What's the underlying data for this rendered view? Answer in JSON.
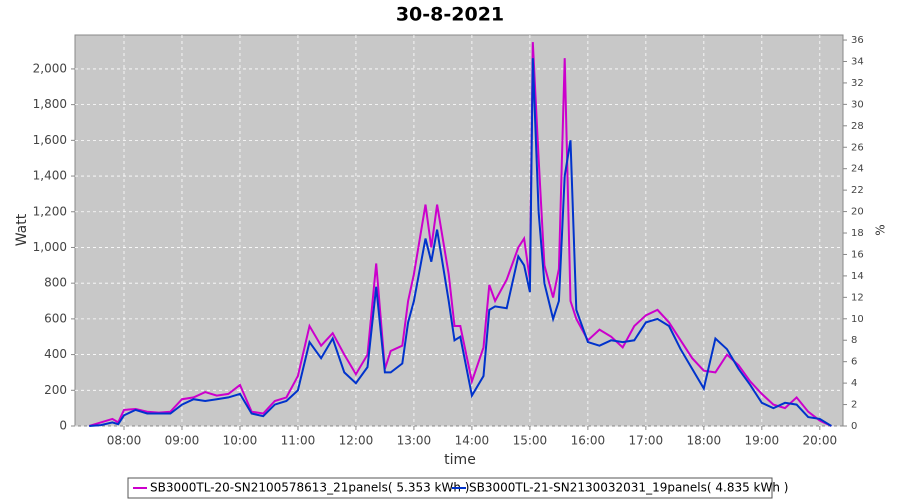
{
  "chart_data": {
    "type": "line",
    "title": "30-8-2021",
    "xlabel": "time",
    "ylabel": "Watt",
    "y2label": "%",
    "x": [
      7.4,
      7.6,
      7.8,
      7.9,
      8.0,
      8.2,
      8.4,
      8.6,
      8.8,
      9.0,
      9.2,
      9.4,
      9.6,
      9.8,
      10.0,
      10.2,
      10.4,
      10.6,
      10.8,
      11.0,
      11.2,
      11.4,
      11.6,
      11.8,
      12.0,
      12.2,
      12.35,
      12.5,
      12.6,
      12.8,
      12.9,
      13.0,
      13.2,
      13.3,
      13.4,
      13.6,
      13.7,
      13.8,
      14.0,
      14.2,
      14.3,
      14.4,
      14.6,
      14.8,
      14.9,
      15.0,
      15.05,
      15.15,
      15.25,
      15.4,
      15.5,
      15.6,
      15.7,
      15.8,
      16.0,
      16.2,
      16.4,
      16.6,
      16.8,
      17.0,
      17.2,
      17.4,
      17.6,
      17.8,
      18.0,
      18.2,
      18.4,
      18.6,
      18.8,
      19.0,
      19.2,
      19.4,
      19.6,
      19.8,
      20.0,
      20.2
    ],
    "series": [
      {
        "name": "SB3000TL-20-SN2100578613_21panels( 5.353 kWh )",
        "color": "#cc00cc",
        "values": [
          0,
          20,
          40,
          20,
          90,
          95,
          80,
          75,
          80,
          150,
          160,
          190,
          170,
          180,
          230,
          80,
          70,
          140,
          160,
          280,
          560,
          450,
          520,
          400,
          290,
          400,
          910,
          320,
          420,
          450,
          700,
          850,
          1240,
          1000,
          1240,
          850,
          560,
          560,
          250,
          440,
          790,
          700,
          820,
          1000,
          1050,
          820,
          2150,
          1500,
          900,
          720,
          880,
          2060,
          700,
          600,
          480,
          540,
          500,
          440,
          560,
          620,
          650,
          580,
          480,
          380,
          310,
          300,
          400,
          340,
          250,
          180,
          120,
          100,
          160,
          80,
          30,
          0
        ]
      },
      {
        "name": "SB3000TL-21-SN2130032031_19panels( 4.835 kWh )",
        "color": "#0033cc",
        "values": [
          0,
          5,
          20,
          10,
          60,
          90,
          70,
          70,
          70,
          120,
          150,
          140,
          150,
          160,
          180,
          70,
          55,
          120,
          140,
          200,
          470,
          380,
          490,
          300,
          240,
          330,
          780,
          300,
          300,
          350,
          580,
          700,
          1050,
          920,
          1100,
          700,
          480,
          500,
          170,
          280,
          650,
          670,
          660,
          950,
          900,
          750,
          2060,
          1200,
          800,
          600,
          700,
          1400,
          1600,
          650,
          470,
          450,
          480,
          470,
          480,
          580,
          600,
          560,
          430,
          320,
          210,
          490,
          430,
          320,
          230,
          130,
          100,
          130,
          120,
          50,
          40,
          0
        ]
      }
    ],
    "xlim": [
      7.155,
      20.4
    ],
    "xticks": [
      {
        "value": 8,
        "label": "08:00"
      },
      {
        "value": 9,
        "label": "09:00"
      },
      {
        "value": 10,
        "label": "10:00"
      },
      {
        "value": 11,
        "label": "11:00"
      },
      {
        "value": 12,
        "label": "12:00"
      },
      {
        "value": 13,
        "label": "13:00"
      },
      {
        "value": 14,
        "label": "14:00"
      },
      {
        "value": 15,
        "label": "15:00"
      },
      {
        "value": 16,
        "label": "16:00"
      },
      {
        "value": 17,
        "label": "17:00"
      },
      {
        "value": 18,
        "label": "18:00"
      },
      {
        "value": 19,
        "label": "19:00"
      },
      {
        "value": 20,
        "label": "20:00"
      }
    ],
    "ylim": [
      0,
      2190
    ],
    "yticks": [
      0,
      200,
      400,
      600,
      800,
      {
        "value": 1000,
        "label": "1,000"
      },
      {
        "value": 1200,
        "label": "1,200"
      },
      {
        "value": 1400,
        "label": "1,400"
      },
      {
        "value": 1600,
        "label": "1,600"
      },
      {
        "value": 1800,
        "label": "1,800"
      },
      {
        "value": 2000,
        "label": "2,000"
      }
    ],
    "y2lim": [
      0,
      36.47
    ],
    "y2ticks": [
      0,
      2,
      4,
      6,
      8,
      10,
      12,
      14,
      16,
      18,
      20,
      22,
      24,
      26,
      28,
      30,
      32,
      34,
      36
    ],
    "grid": true
  }
}
